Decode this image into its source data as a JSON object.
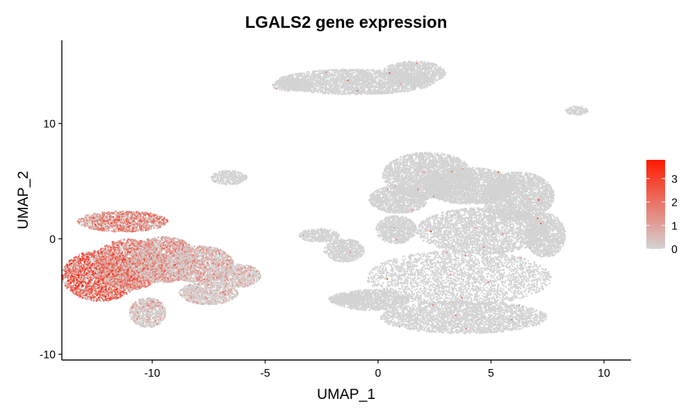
{
  "chart_data": {
    "type": "scatter",
    "title": "LGALS2 gene expression",
    "xlabel": "UMAP_1",
    "ylabel": "UMAP_2",
    "xlim": [
      -14,
      11.2
    ],
    "ylim": [
      -10.5,
      17.2
    ],
    "x_ticks": [
      -10,
      -5,
      0,
      5,
      10
    ],
    "y_ticks": [
      -10,
      0,
      10
    ],
    "x_tick_labels": [
      "-10",
      "-5",
      "0",
      "5",
      "10"
    ],
    "y_tick_labels": [
      "-10",
      "0",
      "10"
    ],
    "grid": false,
    "legend_position": "right",
    "color_scale": {
      "low_color": "#d3d3d3",
      "high_color": "#ff1a00",
      "min": 0,
      "max": 3.8,
      "ticks": [
        0,
        1,
        2,
        3
      ],
      "tick_labels": [
        "0",
        "1",
        "2",
        "3"
      ]
    },
    "clusters": [
      {
        "cx": -12.3,
        "cy": -3.2,
        "rx": 1.7,
        "ry": 2.2,
        "expression": 2.3
      },
      {
        "cx": -11.0,
        "cy": -2.2,
        "rx": 1.6,
        "ry": 2.2,
        "expression": 1.7
      },
      {
        "cx": -9.5,
        "cy": -1.8,
        "rx": 1.5,
        "ry": 2.0,
        "expression": 1.0
      },
      {
        "cx": -7.9,
        "cy": -2.2,
        "rx": 1.5,
        "ry": 1.6,
        "expression": 0.6
      },
      {
        "cx": -6.2,
        "cy": -3.2,
        "rx": 1.0,
        "ry": 1.0,
        "expression": 0.2
      },
      {
        "cx": -11.3,
        "cy": 1.5,
        "rx": 2.0,
        "ry": 0.9,
        "expression": 1.5
      },
      {
        "cx": -10.2,
        "cy": -6.4,
        "rx": 0.8,
        "ry": 1.3,
        "expression": 0.1
      },
      {
        "cx": -7.5,
        "cy": -4.7,
        "rx": 1.3,
        "ry": 1.0,
        "expression": 0.1
      },
      {
        "cx": -1.0,
        "cy": 13.6,
        "rx": 3.5,
        "ry": 1.1,
        "expression": 0.0
      },
      {
        "cx": 1.6,
        "cy": 14.4,
        "rx": 1.4,
        "ry": 1.0,
        "expression": 0.0
      },
      {
        "cx": -3.8,
        "cy": 13.3,
        "rx": 0.9,
        "ry": 0.5,
        "expression": 0.0
      },
      {
        "cx": 2.2,
        "cy": 5.5,
        "rx": 2.0,
        "ry": 2.0,
        "expression": 0.0
      },
      {
        "cx": 4.0,
        "cy": 4.6,
        "rx": 2.0,
        "ry": 1.6,
        "expression": 0.0
      },
      {
        "cx": 6.2,
        "cy": 3.7,
        "rx": 1.6,
        "ry": 2.1,
        "expression": 0.0
      },
      {
        "cx": 4.6,
        "cy": 0.7,
        "rx": 2.9,
        "ry": 2.0,
        "expression": 0.0
      },
      {
        "cx": 7.4,
        "cy": 0.3,
        "rx": 0.9,
        "ry": 1.9,
        "expression": 0.0
      },
      {
        "cx": 3.6,
        "cy": -3.4,
        "rx": 4.1,
        "ry": 2.4,
        "expression": 0.0
      },
      {
        "cx": 3.8,
        "cy": -6.8,
        "rx": 3.7,
        "ry": 1.4,
        "expression": 0.0
      },
      {
        "cx": -0.3,
        "cy": -5.3,
        "rx": 1.7,
        "ry": 0.9,
        "expression": 0.0
      },
      {
        "cx": -1.4,
        "cy": -5.2,
        "rx": 0.8,
        "ry": 0.5,
        "expression": 0.0
      },
      {
        "cx": 0.9,
        "cy": 3.4,
        "rx": 1.3,
        "ry": 1.2,
        "expression": 0.0
      },
      {
        "cx": 0.8,
        "cy": 0.8,
        "rx": 0.9,
        "ry": 1.2,
        "expression": 0.0
      },
      {
        "cx": -1.5,
        "cy": -1.0,
        "rx": 0.9,
        "ry": 1.0,
        "expression": 0.0
      },
      {
        "cx": -2.6,
        "cy": 0.3,
        "rx": 0.9,
        "ry": 0.6,
        "expression": 0.0
      },
      {
        "cx": -6.6,
        "cy": 5.3,
        "rx": 0.8,
        "ry": 0.6,
        "expression": 0.0
      },
      {
        "cx": 8.8,
        "cy": 11.1,
        "rx": 0.5,
        "ry": 0.4,
        "expression": 0.0
      }
    ]
  }
}
